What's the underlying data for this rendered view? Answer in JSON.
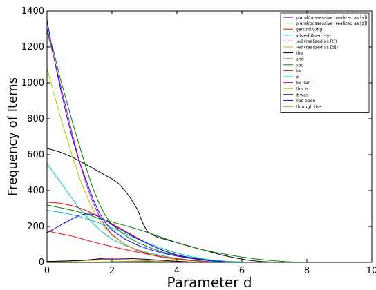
{
  "chart_data": {
    "type": "line",
    "title": "",
    "xlabel": "Parameter d",
    "ylabel": "Frequency of Items",
    "xlim": [
      0,
      10
    ],
    "ylim": [
      0,
      1400
    ],
    "xticks": [
      0,
      2,
      4,
      6,
      8,
      10
    ],
    "yticks": [
      0,
      200,
      400,
      600,
      800,
      1000,
      1200,
      1400
    ],
    "grid": false,
    "legend_position": "top-right",
    "series": [
      {
        "name": "plural/possessive (realized as [s])",
        "color": "#0000ff",
        "points": [
          [
            0,
            1350
          ],
          [
            0.2,
            1150
          ],
          [
            0.4,
            980
          ],
          [
            0.6,
            820
          ],
          [
            0.8,
            680
          ],
          [
            1.0,
            560
          ],
          [
            1.2,
            460
          ],
          [
            1.4,
            360
          ],
          [
            1.6,
            280
          ],
          [
            1.8,
            220
          ],
          [
            2.0,
            180
          ],
          [
            2.4,
            130
          ],
          [
            2.8,
            95
          ],
          [
            3.2,
            70
          ],
          [
            3.6,
            50
          ],
          [
            4.0,
            35
          ],
          [
            4.5,
            20
          ],
          [
            5.0,
            10
          ],
          [
            5.5,
            5
          ],
          [
            6.0,
            2
          ]
        ]
      },
      {
        "name": "plural/possessive (realized as [z])",
        "color": "#008000",
        "points": [
          [
            0,
            1300
          ],
          [
            0.2,
            1180
          ],
          [
            0.4,
            1030
          ],
          [
            0.6,
            900
          ],
          [
            0.8,
            770
          ],
          [
            1.0,
            650
          ],
          [
            1.2,
            530
          ],
          [
            1.4,
            420
          ],
          [
            1.6,
            330
          ],
          [
            1.8,
            260
          ],
          [
            2.0,
            210
          ],
          [
            2.4,
            150
          ],
          [
            2.8,
            110
          ],
          [
            3.2,
            80
          ],
          [
            3.6,
            55
          ],
          [
            4.0,
            40
          ],
          [
            4.5,
            25
          ],
          [
            5.0,
            14
          ],
          [
            5.5,
            6
          ],
          [
            6.0,
            2
          ]
        ]
      },
      {
        "name": "gerund (-ing)",
        "color": "#ff0000",
        "points": [
          [
            0,
            335
          ],
          [
            0.4,
            330
          ],
          [
            0.8,
            315
          ],
          [
            1.2,
            290
          ],
          [
            1.6,
            255
          ],
          [
            2.0,
            215
          ],
          [
            2.4,
            175
          ],
          [
            2.8,
            135
          ],
          [
            3.2,
            95
          ],
          [
            3.6,
            65
          ],
          [
            4.0,
            40
          ],
          [
            4.5,
            22
          ],
          [
            5.0,
            10
          ],
          [
            5.5,
            4
          ],
          [
            6.0,
            1
          ]
        ]
      },
      {
        "name": "adverbiliser (-ly)",
        "color": "#00bfbf",
        "points": [
          [
            0,
            550
          ],
          [
            0.2,
            500
          ],
          [
            0.4,
            450
          ],
          [
            0.6,
            400
          ],
          [
            0.8,
            350
          ],
          [
            1.0,
            300
          ],
          [
            1.2,
            260
          ],
          [
            1.4,
            220
          ],
          [
            1.6,
            185
          ],
          [
            1.8,
            155
          ],
          [
            2.0,
            130
          ],
          [
            2.4,
            95
          ],
          [
            2.8,
            70
          ],
          [
            3.2,
            50
          ],
          [
            3.6,
            35
          ],
          [
            4.0,
            22
          ],
          [
            4.5,
            12
          ],
          [
            5.0,
            5
          ],
          [
            5.5,
            2
          ]
        ]
      },
      {
        "name": "-ed (realized as [t])",
        "color": "#bf00bf",
        "points": [
          [
            0,
            1290
          ],
          [
            0.2,
            1150
          ],
          [
            0.4,
            1000
          ],
          [
            0.6,
            850
          ],
          [
            0.8,
            700
          ],
          [
            1.0,
            560
          ],
          [
            1.2,
            440
          ],
          [
            1.4,
            340
          ],
          [
            1.6,
            260
          ],
          [
            1.8,
            200
          ],
          [
            2.0,
            155
          ],
          [
            2.4,
            100
          ],
          [
            2.8,
            65
          ],
          [
            3.2,
            42
          ],
          [
            3.6,
            27
          ],
          [
            4.0,
            16
          ],
          [
            4.5,
            8
          ],
          [
            5.0,
            3
          ]
        ]
      },
      {
        "name": "-ed (realized as [d])",
        "color": "#bfbf00",
        "points": [
          [
            0,
            1080
          ],
          [
            0.2,
            950
          ],
          [
            0.4,
            820
          ],
          [
            0.6,
            700
          ],
          [
            0.8,
            580
          ],
          [
            1.0,
            470
          ],
          [
            1.2,
            380
          ],
          [
            1.4,
            300
          ],
          [
            1.6,
            240
          ],
          [
            1.8,
            190
          ],
          [
            2.0,
            150
          ],
          [
            2.4,
            100
          ],
          [
            2.8,
            68
          ],
          [
            3.2,
            45
          ],
          [
            3.6,
            28
          ],
          [
            4.0,
            16
          ],
          [
            4.5,
            8
          ],
          [
            5.0,
            3
          ]
        ]
      },
      {
        "name": "the",
        "color": "#000000",
        "points": [
          [
            0,
            635
          ],
          [
            0.4,
            615
          ],
          [
            0.8,
            585
          ],
          [
            1.2,
            545
          ],
          [
            1.6,
            505
          ],
          [
            2.0,
            465
          ],
          [
            2.2,
            440
          ],
          [
            2.4,
            400
          ],
          [
            2.6,
            350
          ],
          [
            2.8,
            290
          ],
          [
            2.9,
            240
          ],
          [
            3.0,
            200
          ],
          [
            3.1,
            170
          ],
          [
            3.4,
            140
          ],
          [
            3.8,
            120
          ],
          [
            4.2,
            100
          ],
          [
            4.6,
            80
          ],
          [
            5.0,
            60
          ],
          [
            5.4,
            40
          ],
          [
            5.8,
            25
          ],
          [
            6.2,
            12
          ],
          [
            6.6,
            5
          ],
          [
            7.0,
            1
          ]
        ]
      },
      {
        "name": "and",
        "color": "#000000",
        "points": [
          [
            0,
            0
          ],
          [
            1.0,
            1
          ],
          [
            2.0,
            3
          ],
          [
            2.5,
            4
          ],
          [
            3.0,
            4
          ],
          [
            3.5,
            3
          ],
          [
            4.0,
            2
          ],
          [
            4.5,
            1
          ],
          [
            5.0,
            0
          ]
        ]
      },
      {
        "name": "you",
        "color": "#008000",
        "points": [
          [
            0,
            0
          ],
          [
            1.0,
            1
          ],
          [
            2.0,
            2
          ],
          [
            3.0,
            2
          ],
          [
            4.0,
            1
          ],
          [
            5.0,
            0
          ]
        ]
      },
      {
        "name": "he",
        "color": "#ff0000",
        "points": [
          [
            0,
            175
          ],
          [
            0.4,
            160
          ],
          [
            0.8,
            145
          ],
          [
            1.2,
            125
          ],
          [
            1.6,
            105
          ],
          [
            2.0,
            88
          ],
          [
            2.4,
            72
          ],
          [
            2.8,
            56
          ],
          [
            3.2,
            42
          ],
          [
            3.6,
            30
          ],
          [
            4.0,
            20
          ],
          [
            4.5,
            10
          ],
          [
            5.0,
            4
          ]
        ]
      },
      {
        "name": "in",
        "color": "#00bfbf",
        "points": [
          [
            0,
            290
          ],
          [
            0.4,
            280
          ],
          [
            0.8,
            265
          ],
          [
            1.2,
            245
          ],
          [
            1.6,
            220
          ],
          [
            2.0,
            190
          ],
          [
            2.4,
            160
          ],
          [
            2.8,
            130
          ],
          [
            3.2,
            100
          ],
          [
            3.6,
            75
          ],
          [
            4.0,
            52
          ],
          [
            4.5,
            30
          ],
          [
            5.0,
            15
          ],
          [
            5.5,
            6
          ],
          [
            6.0,
            2
          ]
        ]
      },
      {
        "name": "he had",
        "color": "#bf00bf",
        "points": [
          [
            0,
            5
          ],
          [
            1.0,
            10
          ],
          [
            1.5,
            15
          ],
          [
            2.0,
            18
          ],
          [
            2.5,
            15
          ],
          [
            3.0,
            10
          ],
          [
            3.5,
            6
          ],
          [
            4.0,
            3
          ],
          [
            4.5,
            1
          ]
        ]
      },
      {
        "name": "this is",
        "color": "#bfbf00",
        "points": [
          [
            0,
            3
          ],
          [
            1.0,
            8
          ],
          [
            1.5,
            12
          ],
          [
            2.0,
            15
          ],
          [
            2.5,
            13
          ],
          [
            3.0,
            9
          ],
          [
            3.5,
            5
          ],
          [
            4.0,
            2
          ]
        ]
      },
      {
        "name": "it was",
        "color": "#000000",
        "points": [
          [
            0,
            5
          ],
          [
            1.0,
            10
          ],
          [
            1.5,
            18
          ],
          [
            1.7,
            22
          ],
          [
            2.0,
            24
          ],
          [
            2.5,
            22
          ],
          [
            3.0,
            18
          ],
          [
            3.5,
            12
          ],
          [
            4.0,
            6
          ],
          [
            4.5,
            2
          ]
        ]
      },
      {
        "name": "has been",
        "color": "#0000ff",
        "points": [
          [
            0,
            165
          ],
          [
            0.2,
            185
          ],
          [
            0.4,
            205
          ],
          [
            0.6,
            225
          ],
          [
            0.8,
            245
          ],
          [
            1.0,
            262
          ],
          [
            1.2,
            270
          ],
          [
            1.4,
            268
          ],
          [
            1.6,
            255
          ],
          [
            1.8,
            235
          ],
          [
            2.0,
            210
          ],
          [
            2.4,
            170
          ],
          [
            2.8,
            130
          ],
          [
            3.2,
            95
          ],
          [
            3.6,
            65
          ],
          [
            4.0,
            42
          ],
          [
            4.5,
            22
          ],
          [
            5.0,
            10
          ],
          [
            5.5,
            3
          ]
        ]
      },
      {
        "name": "through the",
        "color": "#008000",
        "points": [
          [
            0,
            320
          ],
          [
            0.4,
            305
          ],
          [
            0.8,
            290
          ],
          [
            1.2,
            270
          ],
          [
            1.6,
            245
          ],
          [
            2.0,
            225
          ],
          [
            2.4,
            205
          ],
          [
            2.8,
            185
          ],
          [
            3.2,
            160
          ],
          [
            3.6,
            135
          ],
          [
            4.0,
            110
          ],
          [
            4.4,
            88
          ],
          [
            4.8,
            70
          ],
          [
            5.2,
            55
          ],
          [
            5.6,
            42
          ],
          [
            6.0,
            30
          ],
          [
            6.4,
            20
          ],
          [
            6.8,
            12
          ],
          [
            7.2,
            6
          ],
          [
            7.6,
            2
          ],
          [
            8.0,
            0
          ]
        ]
      }
    ]
  }
}
